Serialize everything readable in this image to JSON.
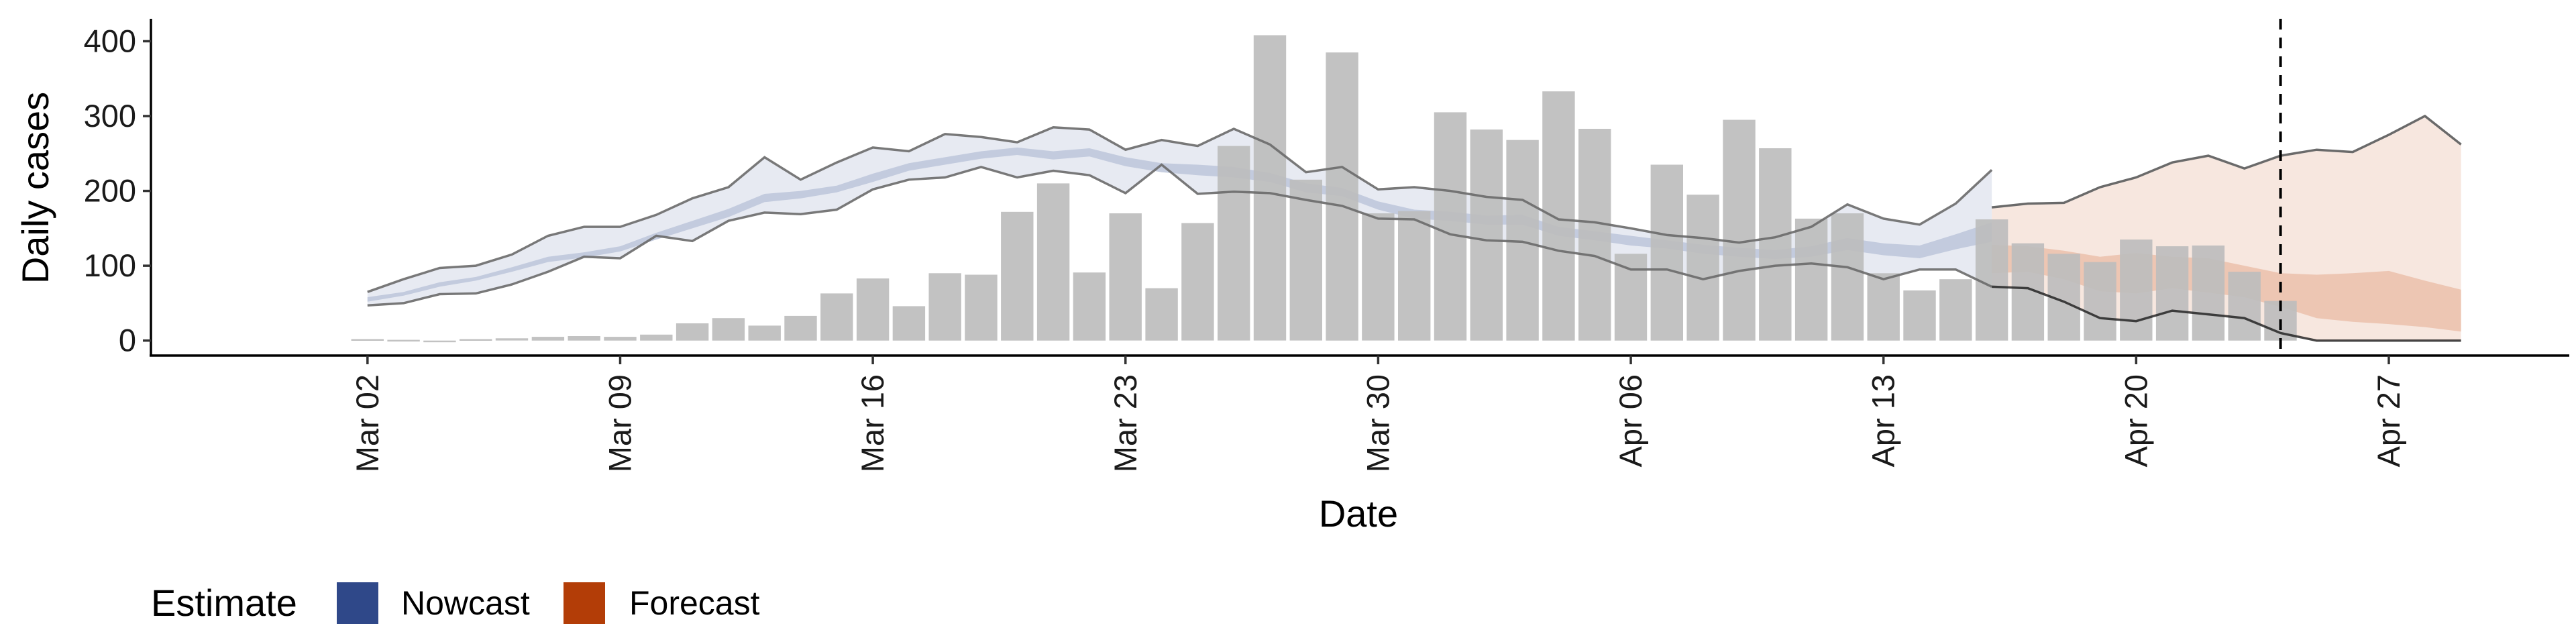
{
  "chart_data": {
    "type": "bar",
    "xlabel": "Date",
    "ylabel": "Daily cases",
    "ylim": [
      -20,
      430
    ],
    "yticks": [
      0,
      100,
      200,
      300,
      400
    ],
    "xlim": [
      "2020-02-25",
      "2020-05-02"
    ],
    "xticks": [
      {
        "date": "2020-03-02",
        "label": "Mar 02"
      },
      {
        "date": "2020-03-09",
        "label": "Mar 09"
      },
      {
        "date": "2020-03-16",
        "label": "Mar 16"
      },
      {
        "date": "2020-03-23",
        "label": "Mar 23"
      },
      {
        "date": "2020-03-30",
        "label": "Mar 30"
      },
      {
        "date": "2020-04-06",
        "label": "Apr 06"
      },
      {
        "date": "2020-04-13",
        "label": "Apr 13"
      },
      {
        "date": "2020-04-20",
        "label": "Apr 20"
      },
      {
        "date": "2020-04-27",
        "label": "Apr 27"
      }
    ],
    "grid": false,
    "forecast_date": "2020-04-24",
    "cases": {
      "start_date": "2020-03-02",
      "values": [
        2,
        1,
        0,
        2,
        3,
        5,
        6,
        5,
        8,
        23,
        30,
        20,
        33,
        63,
        83,
        46,
        90,
        88,
        172,
        210,
        91,
        170,
        70,
        157,
        260,
        408,
        215,
        385,
        170,
        173,
        305,
        282,
        268,
        333,
        283,
        116,
        235,
        195,
        295,
        257,
        163,
        170,
        90,
        67,
        82,
        162,
        130,
        116,
        105,
        135,
        126,
        127,
        92,
        53
      ]
    },
    "nowcast": {
      "start_date": "2020-03-02",
      "outer_upper": [
        65,
        82,
        97,
        100,
        115,
        140,
        152,
        152,
        168,
        190,
        205,
        245,
        215,
        238,
        258,
        253,
        276,
        272,
        265,
        285,
        282,
        255,
        268,
        260,
        283,
        262,
        225,
        232,
        202,
        205,
        200,
        192,
        188,
        162,
        158,
        150,
        141,
        137,
        131,
        138,
        152,
        182,
        163,
        155,
        183,
        228
      ],
      "outer_lower": [
        47,
        50,
        62,
        63,
        75,
        92,
        112,
        110,
        140,
        133,
        160,
        171,
        169,
        175,
        202,
        215,
        218,
        232,
        218,
        227,
        221,
        197,
        235,
        196,
        199,
        197,
        188,
        180,
        163,
        162,
        142,
        134,
        132,
        120,
        113,
        95,
        95,
        82,
        93,
        100,
        103,
        98,
        82,
        95,
        95,
        72
      ],
      "inner_upper": [
        58,
        65,
        78,
        85,
        98,
        112,
        118,
        126,
        144,
        160,
        176,
        196,
        200,
        207,
        223,
        237,
        245,
        253,
        258,
        253,
        257,
        245,
        237,
        235,
        232,
        224,
        210,
        204,
        186,
        175,
        172,
        167,
        168,
        152,
        146,
        140,
        134,
        128,
        124,
        121,
        126,
        137,
        130,
        127,
        142,
        158
      ],
      "inner_lower": [
        52,
        60,
        72,
        80,
        92,
        105,
        111,
        119,
        135,
        150,
        165,
        185,
        190,
        198,
        212,
        227,
        235,
        243,
        248,
        242,
        246,
        233,
        225,
        221,
        218,
        212,
        198,
        193,
        175,
        163,
        160,
        155,
        155,
        140,
        134,
        127,
        123,
        116,
        112,
        109,
        112,
        121,
        114,
        110,
        122,
        132
      ]
    },
    "forecast": {
      "start_date": "2020-04-16",
      "outer_upper": [
        178,
        183,
        184,
        205,
        218,
        238,
        247,
        230,
        247,
        255,
        252,
        275,
        300,
        262
      ],
      "outer_lower": [
        72,
        70,
        52,
        30,
        26,
        40,
        35,
        30,
        10,
        0,
        0,
        0,
        0,
        0
      ],
      "inner_upper": [
        128,
        126,
        120,
        112,
        117,
        112,
        110,
        100,
        90,
        88,
        90,
        93,
        80,
        68
      ],
      "inner_lower": [
        90,
        92,
        82,
        66,
        63,
        70,
        64,
        58,
        45,
        30,
        25,
        22,
        18,
        12
      ]
    },
    "legend": {
      "title": "Estimate",
      "placement": "bottom-left",
      "items": [
        {
          "label": "Nowcast",
          "color": "#2f4889"
        },
        {
          "label": "Forecast",
          "color": "#b33d07"
        }
      ]
    },
    "colors": {
      "bars": "#bdbdbd",
      "nowcast_outer": "#dfe3ee",
      "nowcast_inner": "#bcc5da",
      "forecast_outer": "#f6e4dc",
      "forecast_inner": "#ebc0ab",
      "bound_line": "#6a6a6a",
      "forecast_line": "#1a1a1a"
    }
  }
}
